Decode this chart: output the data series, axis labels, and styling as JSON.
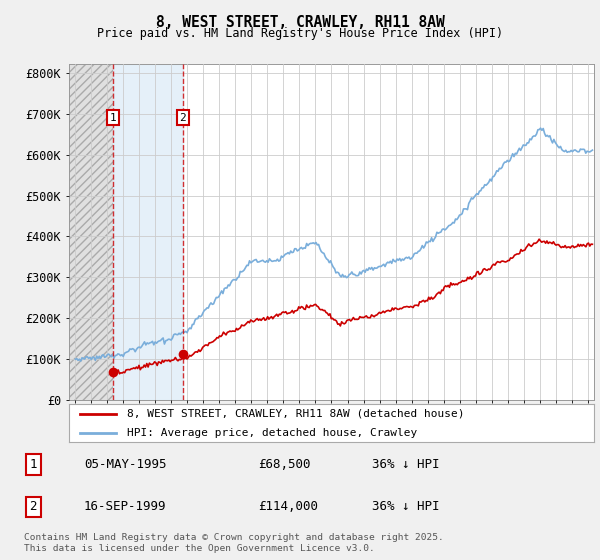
{
  "title": "8, WEST STREET, CRAWLEY, RH11 8AW",
  "subtitle": "Price paid vs. HM Land Registry's House Price Index (HPI)",
  "ylabel_ticks": [
    "£0",
    "£100K",
    "£200K",
    "£300K",
    "£400K",
    "£500K",
    "£600K",
    "£700K",
    "£800K"
  ],
  "ytick_vals": [
    0,
    100000,
    200000,
    300000,
    400000,
    500000,
    600000,
    700000,
    800000
  ],
  "ylim": [
    0,
    820000
  ],
  "xlim_start": 1992.6,
  "xlim_end": 2025.4,
  "background_color": "#f0f0f0",
  "plot_bg_color": "#ffffff",
  "grid_color": "#cccccc",
  "red_line_color": "#cc0000",
  "blue_line_color": "#7aaedb",
  "transaction1_year": 1995.35,
  "transaction1_price": 68500,
  "transaction1_label": "1",
  "transaction1_date": "05-MAY-1995",
  "transaction1_hpi": "36% ↓ HPI",
  "transaction2_year": 1999.71,
  "transaction2_price": 114000,
  "transaction2_label": "2",
  "transaction2_date": "16-SEP-1999",
  "transaction2_hpi": "36% ↓ HPI",
  "legend_label_red": "8, WEST STREET, CRAWLEY, RH11 8AW (detached house)",
  "legend_label_blue": "HPI: Average price, detached house, Crawley",
  "footer": "Contains HM Land Registry data © Crown copyright and database right 2025.\nThis data is licensed under the Open Government Licence v3.0.",
  "hatch_region_end": 1995.35,
  "shade_region_start": 1995.35,
  "shade_region_end": 1999.71
}
